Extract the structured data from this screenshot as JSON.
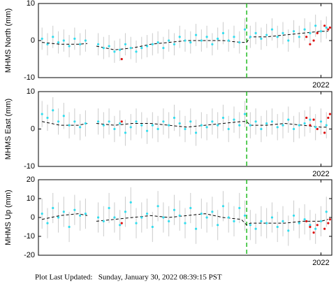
{
  "chart_data": [
    {
      "type": "scatter",
      "ylabel": "MHMS North (mm)",
      "ylim": [
        -10,
        10
      ],
      "yticks": [
        -10,
        0,
        10
      ],
      "xlim": [
        2014.2,
        2022.3
      ],
      "xticks": [
        2022
      ],
      "vline": 2019.95,
      "vline_color": "#22bb22",
      "series": [
        {
          "color": "#33ddee",
          "error": 3,
          "x": [
            2014.3,
            2014.45,
            2014.6,
            2014.75,
            2014.9,
            2015.05,
            2015.2,
            2015.35,
            2015.5,
            2015.85,
            2016.0,
            2016.15,
            2016.3,
            2016.45,
            2016.6,
            2016.75,
            2016.9,
            2017.05,
            2017.2,
            2017.35,
            2017.5,
            2017.65,
            2017.8,
            2017.95,
            2018.1,
            2018.25,
            2018.4,
            2018.55,
            2018.7,
            2018.85,
            2019.0,
            2019.15,
            2019.3,
            2019.45,
            2019.6,
            2019.75,
            2019.9,
            2020.05,
            2020.2,
            2020.35,
            2020.5,
            2020.65,
            2020.8,
            2020.95,
            2021.1,
            2021.25,
            2021.4,
            2021.55,
            2021.7,
            2021.85,
            2022.0,
            2022.15
          ],
          "values": [
            0.5,
            -1,
            1,
            -0.5,
            0,
            -1.5,
            0.5,
            -1,
            0,
            -1,
            -2,
            -1.5,
            -3,
            -2.5,
            -1,
            -2,
            -3,
            -2,
            -1.5,
            -1,
            -0.5,
            -2,
            0,
            -1,
            1,
            0,
            -0.5,
            1.5,
            0,
            1,
            -1,
            0.5,
            2,
            0,
            1,
            -0.5,
            3,
            1,
            2,
            0.5,
            1.5,
            3,
            1,
            2,
            0,
            2.5,
            1,
            3,
            2,
            4,
            2.5,
            3.5
          ]
        },
        {
          "color": "#dd1111",
          "x": [
            2016.5,
            2021.6,
            2021.7,
            2021.8,
            2021.9,
            2022.1,
            2022.2,
            2022.25
          ],
          "values": [
            -5,
            1,
            -1,
            0,
            2,
            4,
            3,
            3.5
          ]
        },
        {
          "type": "line",
          "dashed": true,
          "color": "#000000",
          "x": [
            2014.3,
            2014.8,
            2015.3,
            2015.55,
            2015.65,
            2015.8,
            2016.3,
            2016.8,
            2017.3,
            2017.8,
            2018.3,
            2018.8,
            2019.3,
            2019.8,
            2019.95,
            2020.05,
            2020.5,
            2021.0,
            2021.5,
            2022.0,
            2022.2
          ],
          "values": [
            -0.5,
            -1,
            -1,
            -0.8,
            null,
            -1.5,
            -2.5,
            -2,
            -1,
            -0.5,
            0,
            0,
            0,
            -0.5,
            -0.5,
            1,
            1,
            1.5,
            2,
            2.5,
            2.5
          ]
        }
      ]
    },
    {
      "type": "scatter",
      "ylabel": "MHMS East (mm)",
      "ylim": [
        -10,
        10
      ],
      "yticks": [
        -10,
        0,
        10
      ],
      "xlim": [
        2014.2,
        2022.3
      ],
      "xticks": [
        2022
      ],
      "vline": 2019.95,
      "vline_color": "#22bb22",
      "series": [
        {
          "color": "#33ddee",
          "error": 3.5,
          "x": [
            2014.3,
            2014.45,
            2014.6,
            2014.75,
            2014.9,
            2015.05,
            2015.2,
            2015.35,
            2015.5,
            2015.85,
            2016.0,
            2016.15,
            2016.3,
            2016.45,
            2016.6,
            2016.75,
            2016.9,
            2017.05,
            2017.2,
            2017.35,
            2017.5,
            2017.65,
            2017.8,
            2017.95,
            2018.1,
            2018.25,
            2018.4,
            2018.55,
            2018.7,
            2018.85,
            2019.0,
            2019.15,
            2019.3,
            2019.45,
            2019.6,
            2019.75,
            2019.9,
            2020.05,
            2020.2,
            2020.35,
            2020.5,
            2020.65,
            2020.8,
            2020.95,
            2021.1,
            2021.25,
            2021.4,
            2021.55,
            2021.7,
            2021.85,
            2022.0,
            2022.15
          ],
          "values": [
            4,
            3,
            5,
            2,
            3.5,
            1,
            2,
            0.5,
            1.5,
            2,
            1,
            2,
            0,
            1.5,
            -1,
            0.5,
            2,
            1,
            -0.5,
            1,
            0,
            2,
            1,
            3,
            1.5,
            0,
            2,
            -1,
            1,
            0.5,
            2,
            1,
            3,
            0,
            2.5,
            1,
            4,
            1,
            2,
            0,
            1.5,
            2,
            0.5,
            1,
            2.5,
            0,
            1,
            1.5,
            2.5,
            0.5,
            2,
            1
          ]
        },
        {
          "color": "#dd1111",
          "x": [
            2016.5,
            2021.6,
            2021.7,
            2021.8,
            2021.9,
            2022.1,
            2022.2,
            2022.25
          ],
          "values": [
            2,
            3,
            1,
            2.5,
            0,
            -1,
            3,
            4
          ]
        },
        {
          "type": "line",
          "dashed": true,
          "color": "#000000",
          "x": [
            2014.3,
            2014.8,
            2015.3,
            2015.55,
            2015.65,
            2015.8,
            2016.3,
            2016.8,
            2017.3,
            2017.8,
            2018.3,
            2018.8,
            2019.3,
            2019.8,
            2019.95,
            2020.05,
            2020.5,
            2021.0,
            2021.5,
            2022.0,
            2022.2
          ],
          "values": [
            2,
            1,
            1,
            1.5,
            null,
            1.5,
            1,
            1.5,
            1.5,
            1,
            0.5,
            1,
            1.5,
            2,
            2,
            1,
            1,
            1.5,
            1,
            0.5,
            0.5
          ]
        }
      ]
    },
    {
      "type": "scatter",
      "ylabel": "MHMS Up (mm)",
      "ylim": [
        -20,
        20
      ],
      "yticks": [
        -20,
        -10,
        0,
        10,
        20
      ],
      "xlim": [
        2014.2,
        2022.3
      ],
      "xticks": [
        2022
      ],
      "vline": 2019.95,
      "vline_color": "#22bb22",
      "series": [
        {
          "color": "#33ddee",
          "error": 8,
          "x": [
            2014.3,
            2014.45,
            2014.6,
            2014.75,
            2014.9,
            2015.05,
            2015.2,
            2015.35,
            2015.5,
            2015.85,
            2016.0,
            2016.15,
            2016.3,
            2016.45,
            2016.6,
            2016.75,
            2016.9,
            2017.05,
            2017.2,
            2017.35,
            2017.5,
            2017.65,
            2017.8,
            2017.95,
            2018.1,
            2018.25,
            2018.4,
            2018.55,
            2018.7,
            2018.85,
            2019.0,
            2019.15,
            2019.3,
            2019.45,
            2019.6,
            2019.75,
            2019.9,
            2020.05,
            2020.2,
            2020.35,
            2020.5,
            2020.65,
            2020.8,
            2020.95,
            2021.1,
            2021.25,
            2021.4,
            2021.55,
            2021.7,
            2021.85,
            2022.0,
            2022.15
          ],
          "values": [
            2,
            -3,
            5,
            0,
            3,
            -5,
            4,
            1,
            2,
            0,
            -2,
            5,
            0,
            -4,
            3,
            8,
            -3,
            0,
            2,
            -5,
            6,
            0,
            -2,
            4,
            1,
            -3,
            5,
            -6,
            2,
            0,
            3,
            -4,
            6,
            0,
            -2,
            5,
            1,
            -4,
            -6,
            -2,
            -3,
            0,
            -5,
            -2,
            -7,
            1,
            -3,
            -1,
            -4,
            -6,
            -2,
            3
          ]
        },
        {
          "color": "#dd1111",
          "x": [
            2016.5,
            2021.6,
            2021.7,
            2021.8,
            2021.9,
            2022.1,
            2022.2,
            2022.25
          ],
          "values": [
            -3,
            -2,
            -5,
            -8,
            -4,
            -6,
            -3,
            -1
          ]
        },
        {
          "type": "line",
          "dashed": true,
          "color": "#000000",
          "x": [
            2014.3,
            2014.8,
            2015.3,
            2015.55,
            2015.65,
            2015.8,
            2016.3,
            2016.8,
            2017.3,
            2017.8,
            2018.3,
            2018.8,
            2019.3,
            2019.8,
            2019.95,
            2020.05,
            2020.5,
            2021.0,
            2021.5,
            2022.0,
            2022.2
          ],
          "values": [
            -1,
            1,
            2,
            1,
            null,
            -2,
            -1,
            0,
            1,
            0,
            1,
            2,
            0,
            -1,
            -4,
            -3,
            -3,
            -3,
            -2,
            -2,
            -1
          ]
        }
      ]
    }
  ],
  "footer": "Plot Last Updated:   Sunday, January 30, 2022 08:39:15 PST"
}
